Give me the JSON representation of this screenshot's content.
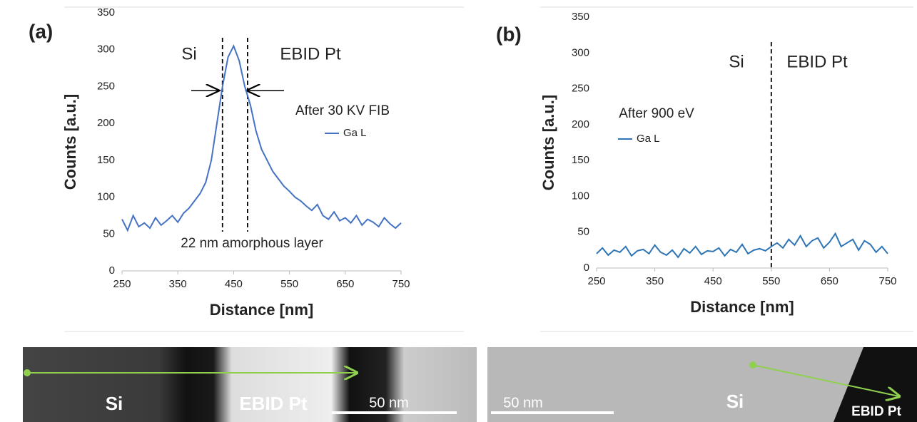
{
  "chart_data": [
    {
      "type": "line",
      "panel": "(a)",
      "xlabel": "Distance [nm]",
      "ylabel": "Counts [a.u.]",
      "x": [
        250,
        260,
        270,
        280,
        290,
        300,
        310,
        320,
        330,
        340,
        350,
        360,
        370,
        380,
        390,
        400,
        410,
        420,
        430,
        440,
        450,
        460,
        470,
        480,
        490,
        500,
        510,
        520,
        530,
        540,
        550,
        560,
        570,
        580,
        590,
        600,
        610,
        620,
        630,
        640,
        650,
        660,
        670,
        680,
        690,
        700,
        710,
        720,
        730,
        740,
        750
      ],
      "series": [
        {
          "name": "Ga L",
          "color": "#4472c4",
          "values": [
            70,
            55,
            75,
            60,
            65,
            58,
            72,
            62,
            68,
            75,
            66,
            78,
            85,
            95,
            105,
            120,
            150,
            200,
            250,
            290,
            305,
            285,
            250,
            225,
            190,
            165,
            150,
            135,
            125,
            115,
            108,
            100,
            95,
            88,
            82,
            90,
            75,
            70,
            80,
            68,
            72,
            65,
            75,
            62,
            70,
            66,
            60,
            72,
            64,
            58,
            65
          ]
        }
      ],
      "xlim": [
        250,
        750
      ],
      "ylim": [
        0,
        350
      ],
      "xticks": [
        250,
        350,
        450,
        550,
        650,
        750
      ],
      "yticks": [
        0,
        50,
        100,
        150,
        200,
        250,
        300,
        350
      ],
      "vlines": [
        430,
        475
      ],
      "annotations": [
        "Si",
        "EBID Pt",
        "After 30 KV FIB",
        "22 nm amorphous layer"
      ]
    },
    {
      "type": "line",
      "panel": "(b)",
      "xlabel": "Distance [nm]",
      "ylabel": "Counts [a.u.]",
      "x": [
        250,
        260,
        270,
        280,
        290,
        300,
        310,
        320,
        330,
        340,
        350,
        360,
        370,
        380,
        390,
        400,
        410,
        420,
        430,
        440,
        450,
        460,
        470,
        480,
        490,
        500,
        510,
        520,
        530,
        540,
        550,
        560,
        570,
        580,
        590,
        600,
        610,
        620,
        630,
        640,
        650,
        660,
        670,
        680,
        690,
        700,
        710,
        720,
        730,
        740,
        750
      ],
      "series": [
        {
          "name": "Ga L",
          "color": "#2e75b6",
          "values": [
            20,
            28,
            18,
            25,
            22,
            30,
            17,
            24,
            26,
            20,
            32,
            22,
            18,
            25,
            15,
            27,
            21,
            30,
            19,
            24,
            23,
            28,
            17,
            26,
            22,
            33,
            20,
            25,
            27,
            24,
            30,
            35,
            28,
            40,
            32,
            45,
            30,
            38,
            42,
            28,
            36,
            48,
            30,
            35,
            40,
            25,
            38,
            33,
            22,
            30,
            20
          ]
        }
      ],
      "xlim": [
        250,
        750
      ],
      "ylim": [
        0,
        350
      ],
      "xticks": [
        250,
        350,
        450,
        550,
        650,
        750
      ],
      "yticks": [
        0,
        50,
        100,
        150,
        200,
        250,
        300,
        350
      ],
      "vlines": [
        550
      ],
      "annotations": [
        "Si",
        "EBID Pt",
        "After 900 eV"
      ]
    }
  ],
  "images": [
    {
      "labels": [
        "Si",
        "EBID Pt"
      ],
      "scale_bar": "50 nm"
    },
    {
      "labels": [
        "Si",
        "EBID Pt"
      ],
      "scale_bar": "50 nm"
    }
  ]
}
